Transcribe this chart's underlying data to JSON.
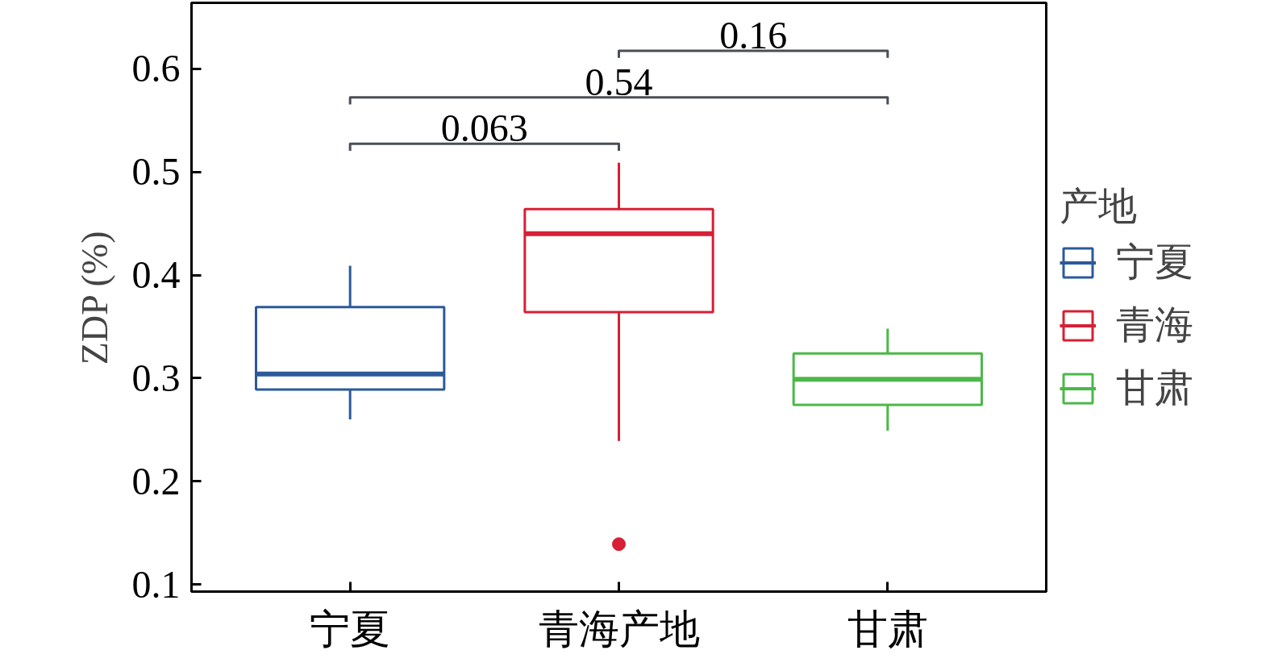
{
  "chart_data": {
    "type": "box",
    "categories": [
      "宁夏",
      "青海产地",
      "甘肃"
    ],
    "ylabel": "ZDP (%)",
    "legend_title": "产地",
    "legend": "right",
    "grid": false,
    "ylim": [
      0.093,
      0.664
    ],
    "yticks": [
      0.1,
      0.2,
      0.3,
      0.4,
      0.5,
      0.6
    ],
    "annotations": [
      "0.063",
      "0.54",
      "0.16"
    ],
    "series": [
      {
        "name": "宁夏",
        "color": "#2c5a9a",
        "boxes": [
          {
            "low": 0.26,
            "q1": 0.289,
            "median": 0.304,
            "q3": 0.369,
            "high": 0.409
          },
          null,
          null
        ]
      },
      {
        "name": "青海",
        "color": "#d71f35",
        "boxes": [
          null,
          {
            "low": 0.239,
            "q1": 0.364,
            "median": 0.44,
            "q3": 0.464,
            "high": 0.509,
            "outliers": [
              0.139
            ]
          },
          null
        ]
      },
      {
        "name": "甘肃",
        "color": "#4cb848",
        "boxes": [
          null,
          null,
          {
            "low": 0.249,
            "q1": 0.274,
            "median": 0.299,
            "q3": 0.324,
            "high": 0.348
          }
        ]
      }
    ]
  }
}
